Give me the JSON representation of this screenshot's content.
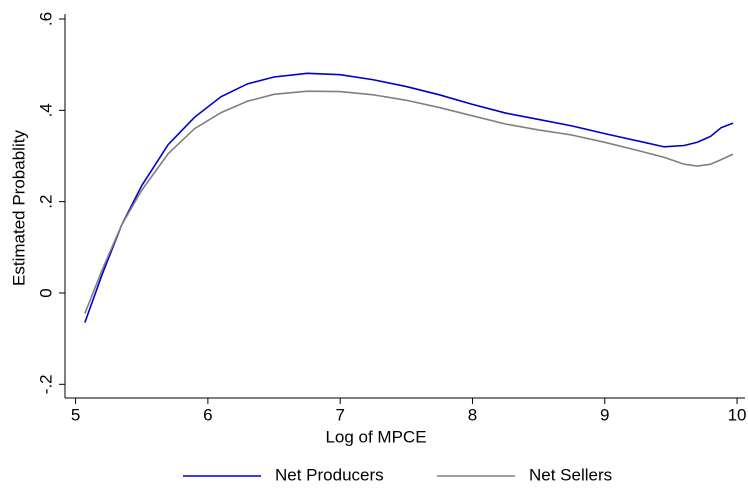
{
  "chart_data": {
    "type": "line",
    "xlabel": "Log of MPCE",
    "ylabel": "Estimated Probablity",
    "x": [
      5.07,
      5.2,
      5.35,
      5.5,
      5.7,
      5.9,
      6.1,
      6.3,
      6.5,
      6.75,
      7.0,
      7.25,
      7.5,
      7.75,
      8.0,
      8.25,
      8.5,
      8.75,
      9.0,
      9.25,
      9.45,
      9.6,
      9.7,
      9.8,
      9.88,
      9.97
    ],
    "series": [
      {
        "name": "Net Producers",
        "color": "#0000cc",
        "values": [
          -0.065,
          0.04,
          0.15,
          0.235,
          0.325,
          0.385,
          0.43,
          0.458,
          0.473,
          0.481,
          0.478,
          0.467,
          0.452,
          0.434,
          0.413,
          0.394,
          0.38,
          0.366,
          0.349,
          0.333,
          0.32,
          0.323,
          0.33,
          0.343,
          0.362,
          0.372
        ]
      },
      {
        "name": "Net Sellers",
        "color": "#808080",
        "values": [
          -0.045,
          0.05,
          0.15,
          0.225,
          0.305,
          0.36,
          0.395,
          0.42,
          0.435,
          0.442,
          0.441,
          0.434,
          0.422,
          0.406,
          0.388,
          0.37,
          0.357,
          0.346,
          0.33,
          0.312,
          0.297,
          0.282,
          0.278,
          0.282,
          0.292,
          0.304
        ]
      }
    ],
    "xlim": [
      4.92,
      10.06
    ],
    "xticks": [
      5,
      6,
      7,
      8,
      9,
      10
    ],
    "ylim": [
      -0.23,
      0.6
    ],
    "yticks": [
      {
        "value": -0.2,
        "label": "-.2"
      },
      0,
      {
        "value": 0.2,
        "label": ".2"
      },
      {
        "value": 0.4,
        "label": ".4"
      },
      {
        "value": 0.6,
        "label": ".6"
      }
    ],
    "grid": false,
    "legend": "bottom"
  }
}
